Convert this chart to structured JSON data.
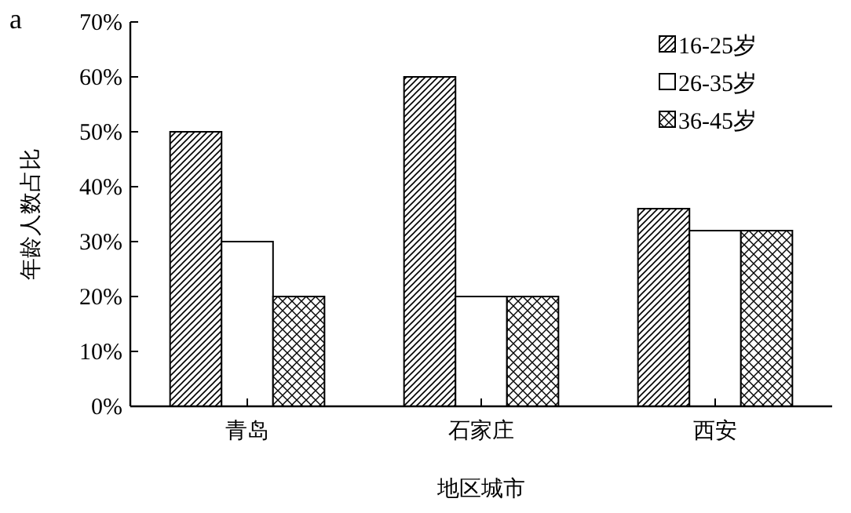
{
  "chart_data": {
    "type": "bar",
    "xlabel": "地区城市",
    "ylabel": "年龄人数占比",
    "categories": [
      "青岛",
      "石家庄",
      "西安"
    ],
    "series": [
      {
        "name": "16-25岁",
        "values": [
          50,
          60,
          36
        ]
      },
      {
        "name": "26-35岁",
        "values": [
          30,
          20,
          32
        ]
      },
      {
        "name": "36-45岁",
        "values": [
          20,
          20,
          32
        ]
      }
    ],
    "ylim": [
      0,
      70
    ],
    "yticks": [
      {
        "value": 0,
        "label": "0%"
      },
      {
        "value": 10,
        "label": "10%"
      },
      {
        "value": 20,
        "label": "20%"
      },
      {
        "value": 30,
        "label": "30%"
      },
      {
        "value": 40,
        "label": "40%"
      },
      {
        "value": 50,
        "label": "50%"
      },
      {
        "value": 60,
        "label": "60%"
      },
      {
        "value": 70,
        "label": "70%"
      }
    ],
    "grid": false,
    "legend": "top right",
    "annotations": [
      "a"
    ]
  }
}
